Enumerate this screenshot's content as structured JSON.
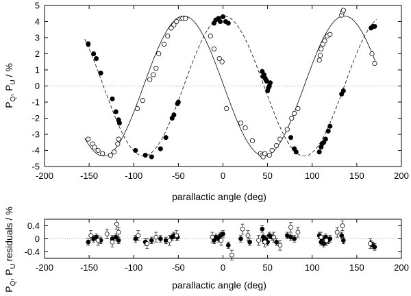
{
  "chart_data": [
    {
      "id": "main",
      "type": "scatter",
      "xlabel": "parallactic angle (deg)",
      "ylabel": "P_Q, P_U / %",
      "ylabel_main": "P",
      "ylabel_sub1": "Q",
      "ylabel_mid": ", P",
      "ylabel_sub2": "U",
      "ylabel_tail": " / %",
      "xlim": [
        -200,
        200
      ],
      "ylim": [
        -5,
        5
      ],
      "xticks": [
        -200,
        -150,
        -100,
        -50,
        0,
        50,
        100,
        150,
        200
      ],
      "yticks": [
        -5,
        -4,
        -3,
        -2,
        -1,
        0,
        1,
        2,
        3,
        4,
        5
      ],
      "reference_line_y": 0,
      "models": [
        {
          "style": "solid",
          "amplitude": 4.35,
          "phase_deg": -44,
          "offset": 0.0
        },
        {
          "style": "dashed",
          "amplitude": 4.35,
          "phase_deg": 1,
          "offset": 0.0
        }
      ],
      "series": [
        {
          "marker": "filled-circle",
          "x": [
            -151,
            -145,
            -142,
            -137,
            -124,
            -120,
            -117,
            -116,
            -98,
            -87,
            -80,
            -70,
            -64,
            -57,
            -55,
            -51,
            -50,
            -10,
            -8,
            -5,
            -3,
            0,
            3,
            6,
            44,
            45,
            46,
            47,
            48,
            49,
            50,
            51,
            52,
            53,
            76,
            80,
            82,
            108,
            110,
            111,
            113,
            115,
            118,
            120,
            133,
            135,
            166,
            168,
            170
          ],
          "y": [
            2.6,
            2.0,
            1.7,
            0.8,
            -0.8,
            -1.6,
            -2.1,
            -2.3,
            -4.0,
            -4.3,
            -4.4,
            -3.9,
            -3.2,
            -2.0,
            -1.8,
            -1.1,
            -1.0,
            3.9,
            4.1,
            4.2,
            4.0,
            4.3,
            4.0,
            3.9,
            0.9,
            0.6,
            0.7,
            0.5,
            0.4,
            0.3,
            -0.3,
            -0.1,
            0.0,
            0.2,
            -3.2,
            -3.9,
            -4.1,
            -4.1,
            -3.8,
            -3.6,
            -3.5,
            -3.3,
            -2.8,
            -2.5,
            -0.5,
            -0.3,
            3.6,
            3.7,
            3.7
          ],
          "yerr": [
            0.15,
            0.1,
            0.1,
            0.1,
            0.1,
            0.1,
            0.1,
            0.1,
            0.1,
            0.1,
            0.1,
            0.1,
            0.1,
            0.1,
            0.1,
            0.1,
            0.1,
            0.1,
            0.1,
            0.1,
            0.1,
            0.1,
            0.1,
            0.1,
            0.1,
            0.1,
            0.1,
            0.1,
            0.1,
            0.1,
            0.1,
            0.1,
            0.1,
            0.1,
            0.1,
            0.1,
            0.1,
            0.1,
            0.1,
            0.1,
            0.1,
            0.1,
            0.1,
            0.1,
            0.1,
            0.1,
            0.1,
            0.1,
            0.1
          ]
        },
        {
          "marker": "open-circle",
          "x": [
            -151,
            -146,
            -144,
            -140,
            -135,
            -126,
            -122,
            -118,
            -117,
            -96,
            -90,
            -82,
            -78,
            -75,
            -72,
            -66,
            -62,
            -58,
            -55,
            -52,
            -47,
            -45,
            -42,
            -14,
            -10,
            -4,
            -1,
            4,
            20,
            25,
            33,
            42,
            44,
            45,
            47,
            52,
            55,
            60,
            64,
            72,
            77,
            80,
            84,
            108,
            109,
            110,
            112,
            114,
            117,
            120,
            133,
            134,
            135,
            167,
            170
          ],
          "y": [
            -3.3,
            -3.6,
            -3.8,
            -4.0,
            -4.2,
            -4.3,
            -4.1,
            -3.6,
            -3.3,
            -1.4,
            -0.9,
            0.4,
            0.7,
            1.1,
            2.0,
            2.6,
            3.1,
            3.6,
            3.8,
            4.0,
            4.2,
            4.2,
            4.2,
            3.1,
            2.3,
            1.7,
            1.5,
            -1.4,
            -2.3,
            -2.6,
            -3.4,
            -4.2,
            -4.3,
            -4.4,
            -4.2,
            -4.3,
            -4.0,
            -3.7,
            -3.3,
            -2.7,
            -2.0,
            -1.7,
            -1.4,
            1.6,
            1.9,
            2.3,
            2.6,
            2.8,
            3.1,
            3.2,
            4.4,
            4.6,
            4.7,
            2.0,
            1.4
          ]
        }
      ]
    },
    {
      "id": "residuals",
      "type": "scatter",
      "xlabel": "parallactic angle (deg)",
      "ylabel": "P_Q, P_U residuals / %",
      "ylabel_main": "P",
      "ylabel_sub1": "Q",
      "ylabel_mid": ", P",
      "ylabel_sub2": "U",
      "ylabel_tail": " residuals / %",
      "xlim": [
        -200,
        200
      ],
      "ylim": [
        -0.6,
        0.6
      ],
      "xticks": [
        -200,
        -150,
        -100,
        -50,
        0,
        50,
        100,
        150,
        200
      ],
      "yticks": [
        -0.4,
        0,
        0.4
      ],
      "ytick_labels": [
        "-0.4",
        "0",
        "0.4"
      ],
      "reference_line_y": 0,
      "series": [
        {
          "marker": "filled-circle",
          "x": [
            -151,
            -145,
            -142,
            -137,
            -124,
            -120,
            -117,
            -98,
            -87,
            -80,
            -70,
            -64,
            -57,
            -55,
            -51,
            -10,
            -8,
            -5,
            -3,
            0,
            6,
            20,
            30,
            44,
            45,
            46,
            48,
            50,
            52,
            55,
            60,
            72,
            76,
            80,
            108,
            110,
            111,
            113,
            115,
            118,
            120,
            133,
            135,
            166,
            168,
            170
          ],
          "y": [
            -0.1,
            0.0,
            0.05,
            -0.05,
            0.0,
            0.05,
            -0.05,
            0.0,
            -0.1,
            -0.05,
            0.0,
            -0.05,
            0.05,
            0.1,
            0.05,
            -0.05,
            0.05,
            0.0,
            0.1,
            0.15,
            -0.2,
            0.0,
            -0.1,
            0.3,
            0.05,
            -0.05,
            0.0,
            -0.1,
            0.1,
            0.05,
            -0.1,
            0.1,
            0.05,
            0.0,
            0.1,
            -0.1,
            0.0,
            -0.15,
            0.05,
            -0.05,
            0.0,
            0.1,
            -0.05,
            -0.15,
            -0.2,
            -0.25
          ],
          "yerr": [
            0.1,
            0.1,
            0.1,
            0.1,
            0.1,
            0.1,
            0.1,
            0.1,
            0.1,
            0.1,
            0.1,
            0.1,
            0.1,
            0.1,
            0.1,
            0.1,
            0.1,
            0.1,
            0.1,
            0.1,
            0.1,
            0.1,
            0.1,
            0.1,
            0.1,
            0.1,
            0.1,
            0.1,
            0.1,
            0.1,
            0.1,
            0.1,
            0.1,
            0.1,
            0.1,
            0.1,
            0.1,
            0.1,
            0.1,
            0.1,
            0.1,
            0.1,
            0.1,
            0.1,
            0.1,
            0.1
          ]
        },
        {
          "marker": "open-circle",
          "x": [
            -148,
            -140,
            -130,
            -124,
            -119,
            -117,
            -95,
            -85,
            -75,
            -60,
            -52,
            -12,
            -2,
            10,
            22,
            28,
            40,
            47,
            57,
            64,
            76,
            84,
            110,
            116,
            128,
            134,
            165
          ],
          "y": [
            0.1,
            -0.05,
            0.15,
            -0.1,
            0.45,
            0.2,
            0.1,
            -0.15,
            0.05,
            -0.05,
            0.1,
            0.05,
            -0.05,
            -0.5,
            0.3,
            0.1,
            -0.05,
            -0.1,
            0.05,
            -0.2,
            0.35,
            0.2,
            0.05,
            -0.05,
            0.2,
            0.4,
            -0.15
          ],
          "yerr": [
            0.15,
            0.15,
            0.15,
            0.15,
            0.15,
            0.15,
            0.15,
            0.15,
            0.15,
            0.15,
            0.15,
            0.15,
            0.15,
            0.15,
            0.15,
            0.15,
            0.15,
            0.15,
            0.15,
            0.15,
            0.15,
            0.15,
            0.15,
            0.15,
            0.15,
            0.15,
            0.15
          ]
        }
      ]
    }
  ]
}
